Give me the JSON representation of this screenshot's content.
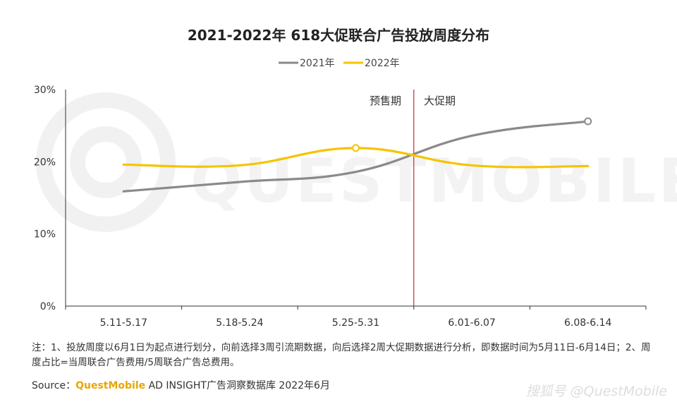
{
  "chart_data": {
    "type": "line",
    "title": "2021-2022年 618大促联合广告投放周度分布",
    "categories": [
      "5.11-5.17",
      "5.18-5.24",
      "5.25-5.31",
      "6.01-6.07",
      "6.08-6.14"
    ],
    "y_ticks": [
      "0%",
      "10%",
      "20%",
      "30%"
    ],
    "ylim": [
      0,
      30
    ],
    "series": [
      {
        "name": "2021年",
        "color": "#8a8a8a",
        "values": [
          15.9,
          17.2,
          18.6,
          23.6,
          25.6
        ]
      },
      {
        "name": "2022年",
        "color": "#f5c400",
        "values": [
          19.6,
          19.5,
          21.9,
          19.5,
          19.4
        ]
      }
    ],
    "divider": {
      "color": "#c00000",
      "x_between": [
        2,
        3
      ]
    },
    "phase_labels": {
      "pre": "预售期",
      "main": "大促期"
    },
    "legend_position": "top-center",
    "grid": false
  },
  "watermark": "QUESTMOBILE",
  "note": "注：1、投放周度以6月1日为起点进行划分，向前选择3周引流期数据，向后选择2周大促期数据进行分析，即数据时间为5月11日-6月14日；2、周度占比=当周联合广告费用/5周联合广告总费用。",
  "source": {
    "prefix": "Source：",
    "brand": "QuestMobile",
    "suffix": " AD INSIGHT广告洞察数据库 2022年6月"
  },
  "credit": "搜狐号 @QuestMobile"
}
